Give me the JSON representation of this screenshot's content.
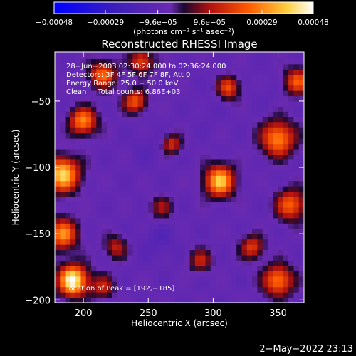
{
  "chart_data": {
    "type": "heatmap",
    "title": "Reconstructed RHESSI Image",
    "xlabel": "Heliocentric X (arcsec)",
    "ylabel": "Heliocentric Y (arcsec)",
    "xlim": [
      178,
      370
    ],
    "ylim": [
      -202,
      -13
    ],
    "xticks": [
      200,
      250,
      300,
      350
    ],
    "yticks": [
      -50,
      -100,
      -150,
      -200
    ],
    "xtick_labels": [
      "200",
      "250",
      "300",
      "350"
    ],
    "ytick_labels": [
      "−50",
      "−100",
      "−150",
      "−200"
    ],
    "colorbar": {
      "range": [
        -0.00048,
        0.00048
      ],
      "ticks": [
        -0.00048,
        -0.00029,
        -9.6e-05,
        9.6e-05,
        0.00029,
        0.00048
      ],
      "tick_labels": [
        "−0.00048",
        "−0.00029",
        "−9.6e−05",
        "9.6e−05",
        "0.00029",
        "0.00048"
      ],
      "unit_label": "(photons cm⁻² s⁻¹ asec⁻²)"
    },
    "annotations": [
      "28−Jun−2003 02:30:24.000 to 02:36:24.000",
      "Detectors: 3F 4F 5F 6F 7F 8F, Att 0",
      "Energy Range: 25.0 − 50.0 keV",
      "Clean     Total counts: 6.86E+03"
    ],
    "peak_label": "Location of Peak = [192,−185]",
    "peak": [
      192,
      -185
    ],
    "timestamp": "2−May−2022 23:13",
    "blobs": [
      {
        "x": 192,
        "y": -185,
        "sigma": 8,
        "value": 0.00048
      },
      {
        "x": 184,
        "y": -105,
        "sigma": 9,
        "value": 0.0004
      },
      {
        "x": 184,
        "y": -150,
        "sigma": 8,
        "value": 0.0003
      },
      {
        "x": 200,
        "y": -65,
        "sigma": 7,
        "value": 0.0003
      },
      {
        "x": 215,
        "y": -30,
        "sigma": 7,
        "value": 0.00025
      },
      {
        "x": 240,
        "y": -50,
        "sigma": 6,
        "value": 0.00022
      },
      {
        "x": 245,
        "y": -20,
        "sigma": 6,
        "value": 0.0002
      },
      {
        "x": 268,
        "y": -82,
        "sigma": 5,
        "value": 0.00016
      },
      {
        "x": 305,
        "y": -110,
        "sigma": 8,
        "value": 0.00038
      },
      {
        "x": 312,
        "y": -40,
        "sigma": 6,
        "value": 0.0002
      },
      {
        "x": 350,
        "y": -78,
        "sigma": 9,
        "value": 0.0003
      },
      {
        "x": 365,
        "y": -35,
        "sigma": 7,
        "value": 0.00022
      },
      {
        "x": 360,
        "y": -128,
        "sigma": 8,
        "value": 0.00024
      },
      {
        "x": 350,
        "y": -185,
        "sigma": 8,
        "value": 0.00028
      },
      {
        "x": 330,
        "y": -160,
        "sigma": 6,
        "value": 0.00018
      },
      {
        "x": 225,
        "y": -160,
        "sigma": 6,
        "value": 0.00012
      },
      {
        "x": 260,
        "y": -130,
        "sigma": 6,
        "value": 8e-05
      },
      {
        "x": 290,
        "y": -170,
        "sigma": 6,
        "value": 0.00012
      },
      {
        "x": 215,
        "y": -190,
        "sigma": 6,
        "value": 0.00012
      },
      {
        "x": 258,
        "y": -155,
        "sigma": 10,
        "value": -0.00014
      },
      {
        "x": 250,
        "y": -85,
        "sigma": 9,
        "value": -0.00012
      },
      {
        "x": 298,
        "y": -58,
        "sigma": 8,
        "value": -0.0001
      },
      {
        "x": 340,
        "y": -45,
        "sigma": 7,
        "value": -0.0001
      },
      {
        "x": 340,
        "y": -140,
        "sigma": 7,
        "value": -8e-05
      }
    ]
  }
}
